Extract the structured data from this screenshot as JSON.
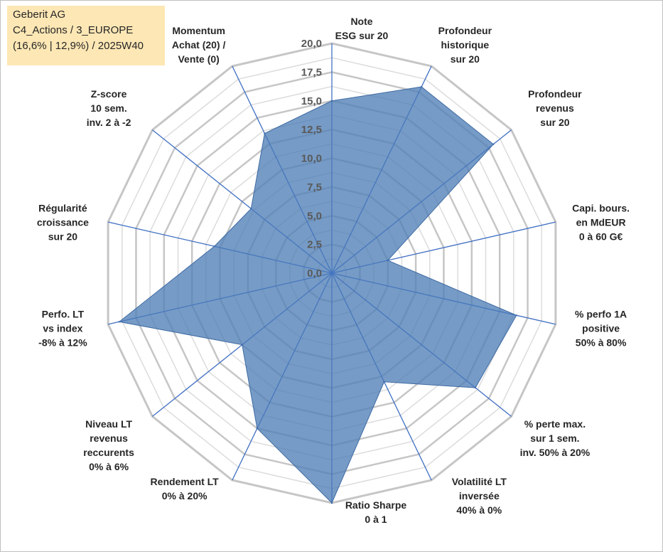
{
  "header": {
    "line1": "Geberit AG",
    "line2": "C4_Actions / 3_EUROPE",
    "line3": "(16,6% | 12,9%) / 2025W40"
  },
  "chart_data": {
    "type": "radar",
    "title": "Geberit AG",
    "rmin": 0,
    "rmax": 20,
    "tick_step": 2.5,
    "tick_labels": [
      "0,0",
      "2,5",
      "5,0",
      "7,5",
      "10,0",
      "12,5",
      "15,0",
      "17,5",
      "20,0"
    ],
    "categories": [
      [
        "Note",
        "ESG sur 20"
      ],
      [
        "Profondeur",
        "historique",
        "sur 20"
      ],
      [
        "Profondeur",
        "revenus",
        "sur 20"
      ],
      [
        "Capi. bours.",
        "en MdEUR",
        "0 à 60 G€"
      ],
      [
        "% perfo 1A",
        "positive",
        "50% à 80%"
      ],
      [
        "% perte max.",
        "sur 1 sem.",
        "inv. 50% à 20%"
      ],
      [
        "Volatilité LT",
        "inversée",
        "40% à 0%"
      ],
      [
        "Ratio Sharpe",
        "0 à 1"
      ],
      [
        "Rendement LT",
        "0% à 20%"
      ],
      [
        "Niveau LT",
        "revenus",
        "reccurents",
        "0% à 6%"
      ],
      [
        "Perfo. LT",
        "vs index",
        "-8% à 12%"
      ],
      [
        "Régularité",
        "croissance",
        "sur 20"
      ],
      [
        "Z-score",
        "10 sem.",
        "inv. 2 à -2"
      ],
      [
        "Momentum",
        "Achat (20) /",
        "Vente (0)"
      ]
    ],
    "series": [
      {
        "name": "Geberit AG",
        "color": "#4f7fb6",
        "values": [
          15.0,
          18.0,
          18.0,
          5.0,
          16.5,
          16.0,
          10.5,
          20.0,
          15.0,
          10.0,
          19.0,
          10.5,
          9.0,
          13.5
        ]
      }
    ]
  }
}
